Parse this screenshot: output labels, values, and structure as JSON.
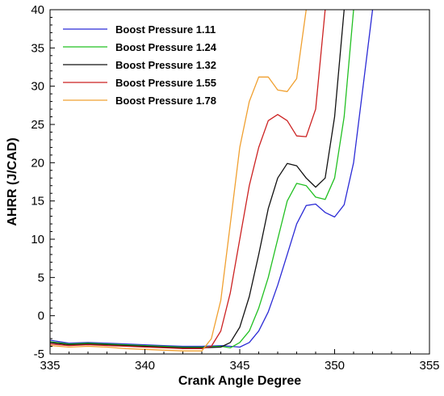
{
  "chart_data": {
    "type": "line",
    "title": "",
    "xlabel": "Crank Angle Degree",
    "ylabel": "AHRR (J/CAD)",
    "xlim": [
      335,
      355
    ],
    "ylim": [
      -5,
      40
    ],
    "xticks": [
      "335",
      "340",
      "345",
      "350",
      "355"
    ],
    "yticks": [
      "-5",
      "0",
      "5",
      "10",
      "15",
      "20",
      "25",
      "30",
      "35",
      "40"
    ],
    "grid": false,
    "legend_position": "top-left",
    "series": [
      {
        "name": "Boost Pressure 1.11",
        "color": "#2b2bd6",
        "points": [
          [
            335,
            -3.2
          ],
          [
            336,
            -3.6
          ],
          [
            337,
            -3.5
          ],
          [
            338,
            -3.6
          ],
          [
            339,
            -3.7
          ],
          [
            340,
            -3.8
          ],
          [
            341,
            -3.9
          ],
          [
            342,
            -4.0
          ],
          [
            343,
            -4.0
          ],
          [
            344,
            -3.9
          ],
          [
            344.5,
            -4.0
          ],
          [
            345,
            -4.1
          ],
          [
            345.5,
            -3.5
          ],
          [
            346,
            -2.0
          ],
          [
            346.5,
            0.5
          ],
          [
            347,
            4.0
          ],
          [
            347.5,
            8.0
          ],
          [
            348,
            12.0
          ],
          [
            348.5,
            14.4
          ],
          [
            349,
            14.6
          ],
          [
            349.5,
            13.5
          ],
          [
            350,
            12.9
          ],
          [
            350.5,
            14.5
          ],
          [
            351,
            20.0
          ],
          [
            351.5,
            30.0
          ],
          [
            352,
            40.0
          ]
        ]
      },
      {
        "name": "Boost Pressure 1.24",
        "color": "#22c022",
        "points": [
          [
            335,
            -3.4
          ],
          [
            336,
            -3.7
          ],
          [
            337,
            -3.6
          ],
          [
            338,
            -3.7
          ],
          [
            339,
            -3.8
          ],
          [
            340,
            -3.9
          ],
          [
            341,
            -4.0
          ],
          [
            342,
            -4.1
          ],
          [
            343,
            -4.1
          ],
          [
            344,
            -4.0
          ],
          [
            344.5,
            -4.2
          ],
          [
            345,
            -3.5
          ],
          [
            345.5,
            -2.0
          ],
          [
            346,
            1.0
          ],
          [
            346.5,
            5.0
          ],
          [
            347,
            10.0
          ],
          [
            347.5,
            15.0
          ],
          [
            348,
            17.3
          ],
          [
            348.5,
            17.0
          ],
          [
            349,
            15.5
          ],
          [
            349.5,
            15.2
          ],
          [
            350,
            18.0
          ],
          [
            350.5,
            26.0
          ],
          [
            351,
            40.0
          ]
        ]
      },
      {
        "name": "Boost Pressure 1.32",
        "color": "#111111",
        "points": [
          [
            335,
            -3.5
          ],
          [
            336,
            -3.8
          ],
          [
            337,
            -3.7
          ],
          [
            338,
            -3.8
          ],
          [
            339,
            -3.9
          ],
          [
            340,
            -4.0
          ],
          [
            341,
            -4.1
          ],
          [
            342,
            -4.2
          ],
          [
            343,
            -4.2
          ],
          [
            344,
            -4.1
          ],
          [
            344.5,
            -3.5
          ],
          [
            345,
            -1.5
          ],
          [
            345.5,
            2.5
          ],
          [
            346,
            8.0
          ],
          [
            346.5,
            14.0
          ],
          [
            347,
            18.0
          ],
          [
            347.5,
            19.9
          ],
          [
            348,
            19.6
          ],
          [
            348.5,
            18.0
          ],
          [
            349,
            16.8
          ],
          [
            349.5,
            18.0
          ],
          [
            350,
            26.0
          ],
          [
            350.5,
            40.0
          ]
        ]
      },
      {
        "name": "Boost Pressure 1.55",
        "color": "#cc2222",
        "points": [
          [
            335,
            -3.7
          ],
          [
            336,
            -3.9
          ],
          [
            337,
            -3.8
          ],
          [
            338,
            -3.9
          ],
          [
            339,
            -4.0
          ],
          [
            340,
            -4.1
          ],
          [
            341,
            -4.2
          ],
          [
            342,
            -4.3
          ],
          [
            343,
            -4.3
          ],
          [
            343.5,
            -4.0
          ],
          [
            344,
            -2.0
          ],
          [
            344.5,
            3.0
          ],
          [
            345,
            10.0
          ],
          [
            345.5,
            17.0
          ],
          [
            346,
            22.0
          ],
          [
            346.5,
            25.5
          ],
          [
            347,
            26.3
          ],
          [
            347.5,
            25.5
          ],
          [
            348,
            23.5
          ],
          [
            348.5,
            23.4
          ],
          [
            349,
            27.0
          ],
          [
            349.5,
            40.0
          ]
        ]
      },
      {
        "name": "Boost Pressure 1.78",
        "color": "#f0a030",
        "points": [
          [
            335,
            -3.9
          ],
          [
            336,
            -4.1
          ],
          [
            337,
            -4.0
          ],
          [
            338,
            -4.1
          ],
          [
            339,
            -4.3
          ],
          [
            340,
            -4.4
          ],
          [
            341,
            -4.5
          ],
          [
            342,
            -4.6
          ],
          [
            343,
            -4.6
          ],
          [
            343.5,
            -3.0
          ],
          [
            344,
            2.0
          ],
          [
            344.5,
            12.0
          ],
          [
            345,
            22.0
          ],
          [
            345.5,
            28.0
          ],
          [
            346,
            31.2
          ],
          [
            346.5,
            31.2
          ],
          [
            347,
            29.5
          ],
          [
            347.5,
            29.3
          ],
          [
            348,
            31.0
          ],
          [
            348.5,
            40.0
          ]
        ]
      }
    ]
  }
}
